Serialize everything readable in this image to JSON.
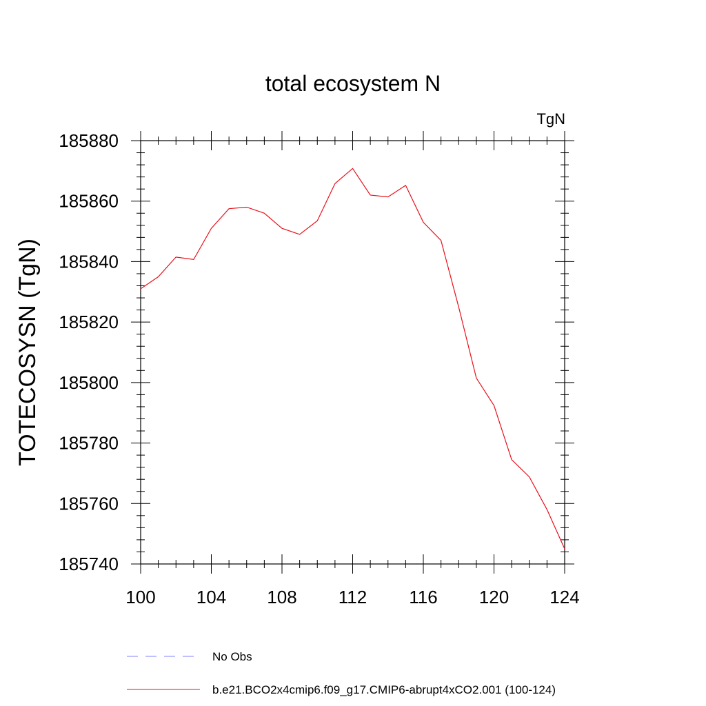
{
  "chart_data": {
    "type": "line",
    "title": "total ecosystem N",
    "units_label": "TgN",
    "ylabel": "TOTECOSYSN  (TgN)",
    "xlabel": "",
    "xlim": [
      100,
      124
    ],
    "ylim": [
      185740,
      185880
    ],
    "x_ticks": [
      100,
      104,
      108,
      112,
      116,
      120,
      124
    ],
    "y_ticks": [
      185740,
      185760,
      185780,
      185800,
      185820,
      185840,
      185860,
      185880
    ],
    "x_minor_step": 1,
    "y_minor_step": 4,
    "grid": false,
    "series": [
      {
        "name": "b.e21.BCO2x4cmip6.f09_g17.CMIP6-abrupt4xCO2.001 (100-124)",
        "color": "#e8101a",
        "dash": "solid",
        "x": [
          100,
          101,
          102,
          103,
          104,
          105,
          106,
          107,
          108,
          109,
          110,
          111,
          112,
          113,
          114,
          115,
          116,
          117,
          118,
          119,
          120,
          121,
          122,
          123,
          124
        ],
        "values": [
          185831,
          185835,
          185841.5,
          185840.7,
          185851,
          185857.5,
          185858,
          185856,
          185851,
          185849,
          185853.5,
          185865.8,
          185870.8,
          185862,
          185861.4,
          185865.2,
          185853,
          185847,
          185825,
          185801.5,
          185792.4,
          185774.5,
          185768.8,
          185758,
          185745
        ]
      }
    ],
    "legend": [
      {
        "label": "No Obs",
        "color": "#8080ff",
        "dash": "dashed"
      },
      {
        "label": "b.e21.BCO2x4cmip6.f09_g17.CMIP6-abrupt4xCO2.001 (100-124)",
        "color": "#e8101a",
        "dash": "solid"
      }
    ],
    "legend_position": "bottom"
  }
}
